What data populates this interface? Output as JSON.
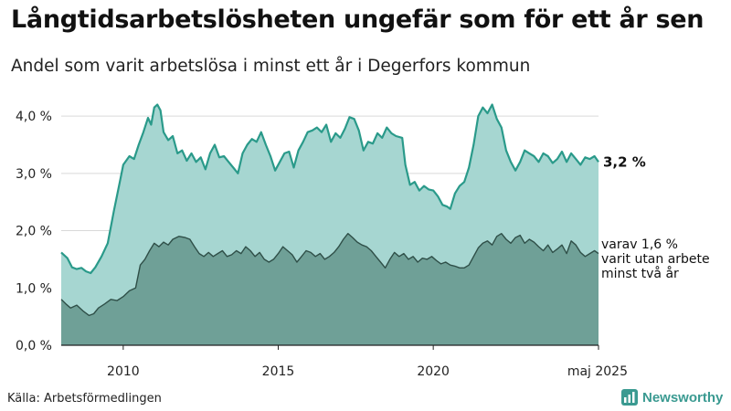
{
  "header": {
    "title": "Långtidsarbetslösheten ungefär som för ett år sen",
    "subtitle": "Andel som varit arbetslösa i minst ett år i Degerfors kommun"
  },
  "footer": {
    "source": "Källa: Arbetsförmedlingen",
    "brand": "Newsworthy"
  },
  "colors": {
    "area_total": "#a6d6d1",
    "line_total": "#2a9a8a",
    "area_longterm": "#6fa097",
    "line_longterm": "#2f4f48",
    "grid": "#d9d9d9"
  },
  "chart_data": {
    "type": "area",
    "title": "Långtidsarbetslösheten ungefär som för ett år sen",
    "subtitle": "Andel som varit arbetslösa i minst ett år i Degerfors kommun",
    "xlabel": "",
    "ylabel": "",
    "ylim": [
      0,
      4.4
    ],
    "yticks": [
      0,
      1,
      2,
      3,
      4
    ],
    "ytick_labels": [
      "0,0 %",
      "1,0 %",
      "2,0 %",
      "3,0 %",
      "4,0 %"
    ],
    "xticks": [
      2010,
      2015,
      2020,
      2025.33
    ],
    "xtick_labels": [
      "2010",
      "2015",
      "2020",
      "maj 2025"
    ],
    "grid": true,
    "series": [
      {
        "name": "Andel som varit arbetslösa i minst ett år",
        "end_label": "3,2 %",
        "points": [
          [
            2008.0,
            1.62
          ],
          [
            2008.2,
            1.52
          ],
          [
            2008.35,
            1.36
          ],
          [
            2008.5,
            1.33
          ],
          [
            2008.65,
            1.35
          ],
          [
            2008.8,
            1.29
          ],
          [
            2008.95,
            1.26
          ],
          [
            2009.1,
            1.36
          ],
          [
            2009.3,
            1.55
          ],
          [
            2009.5,
            1.78
          ],
          [
            2009.7,
            2.35
          ],
          [
            2009.9,
            2.88
          ],
          [
            2010.0,
            3.15
          ],
          [
            2010.2,
            3.3
          ],
          [
            2010.35,
            3.25
          ],
          [
            2010.5,
            3.5
          ],
          [
            2010.65,
            3.72
          ],
          [
            2010.8,
            3.97
          ],
          [
            2010.9,
            3.85
          ],
          [
            2011.0,
            4.15
          ],
          [
            2011.1,
            4.2
          ],
          [
            2011.2,
            4.1
          ],
          [
            2011.3,
            3.72
          ],
          [
            2011.45,
            3.58
          ],
          [
            2011.6,
            3.65
          ],
          [
            2011.75,
            3.35
          ],
          [
            2011.9,
            3.4
          ],
          [
            2012.05,
            3.22
          ],
          [
            2012.2,
            3.35
          ],
          [
            2012.35,
            3.2
          ],
          [
            2012.5,
            3.28
          ],
          [
            2012.65,
            3.07
          ],
          [
            2012.8,
            3.35
          ],
          [
            2012.95,
            3.5
          ],
          [
            2013.1,
            3.28
          ],
          [
            2013.25,
            3.3
          ],
          [
            2013.4,
            3.2
          ],
          [
            2013.55,
            3.1
          ],
          [
            2013.7,
            3.0
          ],
          [
            2013.85,
            3.35
          ],
          [
            2014.0,
            3.5
          ],
          [
            2014.15,
            3.6
          ],
          [
            2014.3,
            3.55
          ],
          [
            2014.45,
            3.72
          ],
          [
            2014.6,
            3.5
          ],
          [
            2014.75,
            3.3
          ],
          [
            2014.9,
            3.05
          ],
          [
            2015.05,
            3.2
          ],
          [
            2015.2,
            3.35
          ],
          [
            2015.35,
            3.38
          ],
          [
            2015.5,
            3.1
          ],
          [
            2015.65,
            3.4
          ],
          [
            2015.8,
            3.55
          ],
          [
            2015.95,
            3.72
          ],
          [
            2016.1,
            3.75
          ],
          [
            2016.25,
            3.8
          ],
          [
            2016.4,
            3.72
          ],
          [
            2016.55,
            3.85
          ],
          [
            2016.7,
            3.55
          ],
          [
            2016.85,
            3.7
          ],
          [
            2017.0,
            3.62
          ],
          [
            2017.15,
            3.78
          ],
          [
            2017.3,
            3.98
          ],
          [
            2017.45,
            3.95
          ],
          [
            2017.6,
            3.75
          ],
          [
            2017.75,
            3.4
          ],
          [
            2017.9,
            3.55
          ],
          [
            2018.05,
            3.52
          ],
          [
            2018.2,
            3.7
          ],
          [
            2018.35,
            3.62
          ],
          [
            2018.5,
            3.8
          ],
          [
            2018.65,
            3.7
          ],
          [
            2018.8,
            3.65
          ],
          [
            2019.0,
            3.62
          ],
          [
            2019.1,
            3.15
          ],
          [
            2019.25,
            2.8
          ],
          [
            2019.4,
            2.85
          ],
          [
            2019.55,
            2.7
          ],
          [
            2019.7,
            2.78
          ],
          [
            2019.85,
            2.72
          ],
          [
            2020.0,
            2.7
          ],
          [
            2020.15,
            2.6
          ],
          [
            2020.3,
            2.45
          ],
          [
            2020.45,
            2.42
          ],
          [
            2020.55,
            2.38
          ],
          [
            2020.7,
            2.65
          ],
          [
            2020.85,
            2.78
          ],
          [
            2021.0,
            2.85
          ],
          [
            2021.15,
            3.1
          ],
          [
            2021.3,
            3.5
          ],
          [
            2021.45,
            4.0
          ],
          [
            2021.6,
            4.15
          ],
          [
            2021.75,
            4.05
          ],
          [
            2021.9,
            4.2
          ],
          [
            2022.05,
            3.95
          ],
          [
            2022.2,
            3.8
          ],
          [
            2022.35,
            3.4
          ],
          [
            2022.5,
            3.2
          ],
          [
            2022.65,
            3.05
          ],
          [
            2022.8,
            3.2
          ],
          [
            2022.95,
            3.4
          ],
          [
            2023.1,
            3.35
          ],
          [
            2023.25,
            3.3
          ],
          [
            2023.4,
            3.2
          ],
          [
            2023.55,
            3.35
          ],
          [
            2023.7,
            3.3
          ],
          [
            2023.85,
            3.18
          ],
          [
            2024.0,
            3.25
          ],
          [
            2024.15,
            3.38
          ],
          [
            2024.3,
            3.2
          ],
          [
            2024.45,
            3.35
          ],
          [
            2024.6,
            3.25
          ],
          [
            2024.75,
            3.15
          ],
          [
            2024.9,
            3.28
          ],
          [
            2025.05,
            3.25
          ],
          [
            2025.2,
            3.3
          ],
          [
            2025.33,
            3.2
          ]
        ]
      },
      {
        "name": "varav utan arbete minst två år",
        "end_label_lines": [
          "varav 1,6 %",
          "varit utan arbete",
          "minst två år"
        ],
        "points": [
          [
            2008.0,
            0.8
          ],
          [
            2008.15,
            0.72
          ],
          [
            2008.3,
            0.65
          ],
          [
            2008.5,
            0.7
          ],
          [
            2008.7,
            0.6
          ],
          [
            2008.9,
            0.52
          ],
          [
            2009.05,
            0.55
          ],
          [
            2009.2,
            0.65
          ],
          [
            2009.4,
            0.72
          ],
          [
            2009.6,
            0.8
          ],
          [
            2009.8,
            0.78
          ],
          [
            2010.0,
            0.85
          ],
          [
            2010.2,
            0.95
          ],
          [
            2010.4,
            1.0
          ],
          [
            2010.55,
            1.4
          ],
          [
            2010.7,
            1.5
          ],
          [
            2010.85,
            1.65
          ],
          [
            2011.0,
            1.78
          ],
          [
            2011.15,
            1.72
          ],
          [
            2011.3,
            1.8
          ],
          [
            2011.45,
            1.75
          ],
          [
            2011.6,
            1.85
          ],
          [
            2011.8,
            1.9
          ],
          [
            2012.0,
            1.88
          ],
          [
            2012.15,
            1.85
          ],
          [
            2012.3,
            1.72
          ],
          [
            2012.45,
            1.6
          ],
          [
            2012.6,
            1.55
          ],
          [
            2012.75,
            1.62
          ],
          [
            2012.9,
            1.55
          ],
          [
            2013.05,
            1.6
          ],
          [
            2013.2,
            1.65
          ],
          [
            2013.35,
            1.55
          ],
          [
            2013.5,
            1.58
          ],
          [
            2013.65,
            1.65
          ],
          [
            2013.8,
            1.6
          ],
          [
            2013.95,
            1.72
          ],
          [
            2014.1,
            1.65
          ],
          [
            2014.25,
            1.55
          ],
          [
            2014.4,
            1.62
          ],
          [
            2014.55,
            1.5
          ],
          [
            2014.7,
            1.45
          ],
          [
            2014.85,
            1.5
          ],
          [
            2015.0,
            1.6
          ],
          [
            2015.15,
            1.72
          ],
          [
            2015.3,
            1.65
          ],
          [
            2015.45,
            1.58
          ],
          [
            2015.6,
            1.45
          ],
          [
            2015.75,
            1.55
          ],
          [
            2015.9,
            1.65
          ],
          [
            2016.05,
            1.62
          ],
          [
            2016.2,
            1.55
          ],
          [
            2016.35,
            1.6
          ],
          [
            2016.5,
            1.5
          ],
          [
            2016.65,
            1.55
          ],
          [
            2016.8,
            1.62
          ],
          [
            2016.95,
            1.72
          ],
          [
            2017.1,
            1.85
          ],
          [
            2017.25,
            1.95
          ],
          [
            2017.4,
            1.88
          ],
          [
            2017.55,
            1.8
          ],
          [
            2017.7,
            1.75
          ],
          [
            2017.85,
            1.72
          ],
          [
            2018.0,
            1.65
          ],
          [
            2018.15,
            1.55
          ],
          [
            2018.3,
            1.45
          ],
          [
            2018.45,
            1.35
          ],
          [
            2018.6,
            1.5
          ],
          [
            2018.75,
            1.62
          ],
          [
            2018.9,
            1.55
          ],
          [
            2019.05,
            1.6
          ],
          [
            2019.2,
            1.5
          ],
          [
            2019.35,
            1.55
          ],
          [
            2019.5,
            1.45
          ],
          [
            2019.65,
            1.52
          ],
          [
            2019.8,
            1.5
          ],
          [
            2019.95,
            1.55
          ],
          [
            2020.1,
            1.48
          ],
          [
            2020.25,
            1.42
          ],
          [
            2020.4,
            1.45
          ],
          [
            2020.55,
            1.4
          ],
          [
            2020.7,
            1.38
          ],
          [
            2020.85,
            1.35
          ],
          [
            2021.0,
            1.35
          ],
          [
            2021.15,
            1.4
          ],
          [
            2021.3,
            1.55
          ],
          [
            2021.45,
            1.7
          ],
          [
            2021.6,
            1.78
          ],
          [
            2021.75,
            1.82
          ],
          [
            2021.9,
            1.75
          ],
          [
            2022.05,
            1.9
          ],
          [
            2022.2,
            1.95
          ],
          [
            2022.35,
            1.85
          ],
          [
            2022.5,
            1.78
          ],
          [
            2022.65,
            1.88
          ],
          [
            2022.8,
            1.92
          ],
          [
            2022.95,
            1.78
          ],
          [
            2023.1,
            1.85
          ],
          [
            2023.25,
            1.8
          ],
          [
            2023.4,
            1.72
          ],
          [
            2023.55,
            1.65
          ],
          [
            2023.7,
            1.75
          ],
          [
            2023.85,
            1.62
          ],
          [
            2024.0,
            1.68
          ],
          [
            2024.15,
            1.75
          ],
          [
            2024.3,
            1.6
          ],
          [
            2024.45,
            1.82
          ],
          [
            2024.6,
            1.75
          ],
          [
            2024.75,
            1.62
          ],
          [
            2024.9,
            1.55
          ],
          [
            2025.05,
            1.6
          ],
          [
            2025.2,
            1.65
          ],
          [
            2025.33,
            1.6
          ]
        ]
      }
    ]
  }
}
